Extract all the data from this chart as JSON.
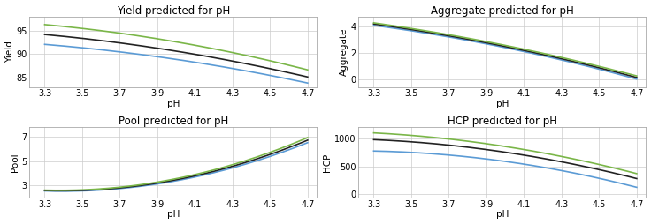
{
  "ph_values": [
    3.3,
    3.5,
    3.7,
    3.9,
    4.1,
    4.3,
    4.5,
    4.7
  ],
  "plots": [
    {
      "title": "Yield predicted for pH",
      "ylabel": "Yield",
      "xlabel": "pH",
      "ylim": [
        83,
        98
      ],
      "yticks": [
        85,
        90,
        95
      ],
      "lines": [
        {
          "color": "#5b9bd5",
          "lw": 1.2,
          "y": [
            92.2,
            91.3,
            90.3,
            89.3,
            88.2,
            87.1,
            85.9,
            83.5
          ]
        },
        {
          "color": "#222222",
          "lw": 1.2,
          "y": [
            94.3,
            93.3,
            92.2,
            91.1,
            89.9,
            88.7,
            87.3,
            84.8
          ]
        },
        {
          "color": "#7ab648",
          "lw": 1.2,
          "y": [
            96.4,
            95.4,
            94.3,
            93.1,
            91.8,
            90.5,
            89.0,
            86.3
          ]
        }
      ]
    },
    {
      "title": "Aggregate predicted for pH",
      "ylabel": "Aggregate",
      "xlabel": "pH",
      "ylim": [
        -0.6,
        4.8
      ],
      "yticks": [
        0,
        2,
        4
      ],
      "lines": [
        {
          "color": "#5b9bd5",
          "lw": 1.2,
          "y": [
            4.18,
            3.67,
            3.16,
            2.64,
            2.12,
            1.58,
            0.82,
            -0.08
          ]
        },
        {
          "color": "#222222",
          "lw": 1.2,
          "y": [
            4.28,
            3.77,
            3.25,
            2.73,
            2.21,
            1.67,
            0.92,
            0.05
          ]
        },
        {
          "color": "#7ab648",
          "lw": 1.2,
          "y": [
            4.36,
            3.85,
            3.34,
            2.82,
            2.3,
            1.76,
            1.02,
            0.18
          ]
        }
      ]
    },
    {
      "title": "Pool predicted for pH",
      "ylabel": "Pool",
      "xlabel": "pH",
      "ylim": [
        2.0,
        7.8
      ],
      "yticks": [
        3,
        5,
        7
      ],
      "lines": [
        {
          "color": "#5b9bd5",
          "lw": 1.2,
          "y": [
            2.42,
            2.65,
            2.92,
            3.23,
            3.62,
            4.3,
            5.3,
            6.68
          ]
        },
        {
          "color": "#222222",
          "lw": 1.2,
          "y": [
            2.45,
            2.69,
            2.97,
            3.3,
            3.72,
            4.43,
            5.47,
            6.88
          ]
        },
        {
          "color": "#7ab648",
          "lw": 1.2,
          "y": [
            2.48,
            2.74,
            3.03,
            3.38,
            3.82,
            4.56,
            5.63,
            7.1
          ]
        }
      ]
    },
    {
      "title": "HCP predicted for pH",
      "ylabel": "HCP",
      "xlabel": "pH",
      "ylim": [
        -60,
        1200
      ],
      "yticks": [
        0,
        500,
        1000
      ],
      "lines": [
        {
          "color": "#5b9bd5",
          "lw": 1.2,
          "y": [
            800,
            740,
            675,
            610,
            540,
            455,
            340,
            80
          ]
        },
        {
          "color": "#222222",
          "lw": 1.2,
          "y": [
            1000,
            930,
            855,
            780,
            700,
            610,
            490,
            240
          ]
        },
        {
          "color": "#7ab648",
          "lw": 1.2,
          "y": [
            1120,
            1045,
            965,
            885,
            800,
            705,
            580,
            330
          ]
        }
      ]
    }
  ],
  "grid_color": "#cccccc",
  "background_color": "#ffffff",
  "xticks": [
    3.3,
    3.5,
    3.7,
    3.9,
    4.1,
    4.3,
    4.5,
    4.7
  ],
  "xtick_labels": [
    "3.3",
    "3.5",
    "3.7",
    "3.9",
    "4.1",
    "4.3",
    "4.5",
    "4.7"
  ],
  "title_fontsize": 8.5,
  "label_fontsize": 7.5,
  "tick_fontsize": 7
}
